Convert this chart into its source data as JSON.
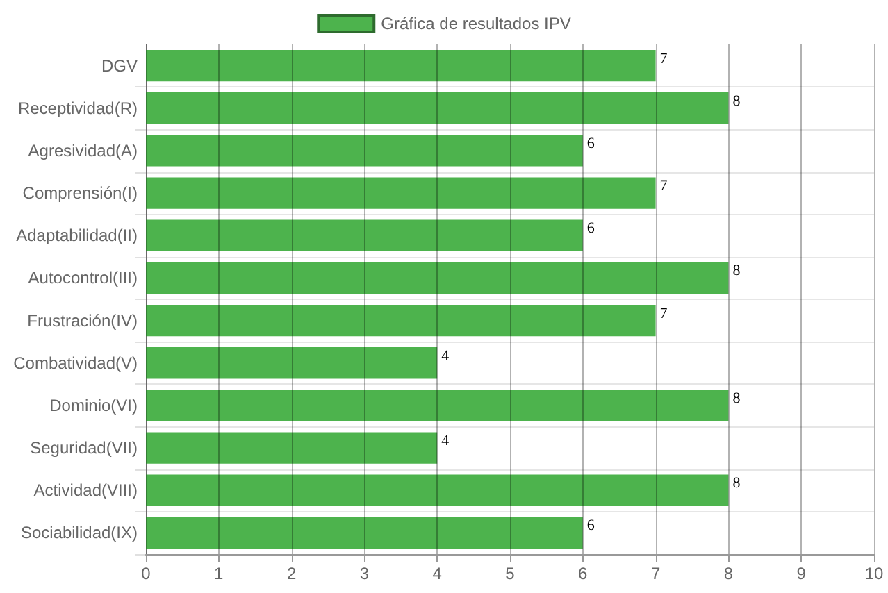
{
  "chart_data": {
    "type": "bar",
    "orientation": "horizontal",
    "legend": "top",
    "data_labels": true,
    "grid": true,
    "categories": [
      "DGV",
      "Receptividad(R)",
      "Agresividad(A)",
      "Comprensión(I)",
      "Adaptabilidad(II)",
      "Autocontrol(III)",
      "Frustración(IV)",
      "Combatividad(V)",
      "Dominio(VI)",
      "Seguridad(VII)",
      "Actividad(VIII)",
      "Sociabilidad(IX)"
    ],
    "series": [
      {
        "name": "Gráfica de resultados IPV",
        "color": "#4db34d",
        "values": [
          7,
          8,
          6,
          7,
          6,
          8,
          7,
          4,
          8,
          4,
          8,
          6
        ]
      }
    ],
    "xlim": [
      0,
      10
    ],
    "xticks": [
      0,
      1,
      2,
      3,
      4,
      5,
      6,
      7,
      8,
      9,
      10
    ]
  }
}
